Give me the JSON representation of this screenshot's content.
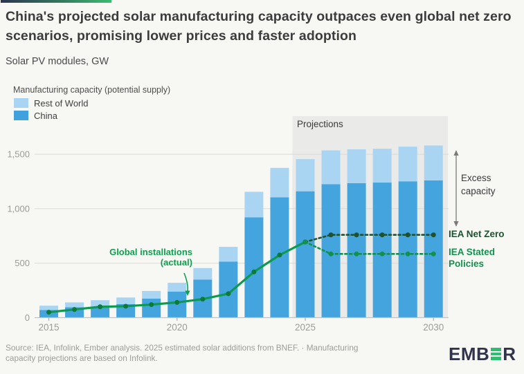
{
  "page": {
    "background": "#F7F7F4",
    "accent_gradient_left": "#2B3550",
    "accent_gradient_right": "#3DBB72"
  },
  "header": {
    "title": "China's projected solar manufacturing capacity outpaces even global net zero scenarios, promising lower prices and faster adoption",
    "subtitle": "Solar PV modules, GW"
  },
  "legend": {
    "title": "Manufacturing capacity (potential supply)",
    "items": [
      {
        "label": "Rest of World",
        "color": "#A9D5F3"
      },
      {
        "label": "China",
        "color": "#3FA2DD"
      }
    ]
  },
  "annotations": {
    "projections_label": "Projections",
    "global_installations_line1": "Global installations",
    "global_installations_line2": "(actual)",
    "excess_line1": "Excess",
    "excess_line2": "capacity",
    "iea_net_zero_label": "IEA Net Zero",
    "iea_stated_line1": "IEA Stated",
    "iea_stated_line2": "Policies"
  },
  "footer": {
    "line1": "Source: IEA, Infolink, Ember analysis. 2025 estimated solar additions from BNEF. · Manufacturing",
    "line2": "capacity projections are based on Infolink.",
    "logo_prefix": "EMB",
    "logo_suffix": "R"
  },
  "chart_data": {
    "type": "bar",
    "title": "China's projected solar manufacturing capacity outpaces even global net zero scenarios, promising lower prices and faster adoption",
    "subtitle": "Solar PV modules, GW",
    "ylabel": "GW",
    "stacked": true,
    "grid": true,
    "legend_position": "top-left",
    "categories": [
      2015,
      2016,
      2017,
      2018,
      2019,
      2020,
      2021,
      2022,
      2023,
      2024,
      2025,
      2026,
      2027,
      2028,
      2029,
      2030
    ],
    "series": [
      {
        "name": "China",
        "color": "#43A4DE",
        "values": [
          70,
          95,
          100,
          125,
          175,
          240,
          350,
          515,
          920,
          1105,
          1160,
          1225,
          1235,
          1240,
          1250,
          1260
        ]
      },
      {
        "name": "Rest of World",
        "color": "#A9D5F3",
        "values": [
          40,
          45,
          60,
          60,
          70,
          80,
          105,
          135,
          235,
          270,
          295,
          310,
          310,
          310,
          320,
          320
        ]
      }
    ],
    "lines": [
      {
        "name": "Global installations (actual)",
        "style": "solid",
        "color": "#0D9A4E",
        "dot_color": "#0B7A3C",
        "x": [
          2015,
          2016,
          2017,
          2018,
          2019,
          2020,
          2021,
          2022,
          2023,
          2024,
          2025
        ],
        "values": [
          50,
          75,
          100,
          105,
          120,
          140,
          170,
          220,
          420,
          575,
          695
        ]
      },
      {
        "name": "IEA Net Zero",
        "style": "dashed",
        "color": "#1E5130",
        "dot_color": "#1E5130",
        "x": [
          2025,
          2026,
          2027,
          2028,
          2029,
          2030
        ],
        "values": [
          695,
          760,
          760,
          760,
          760,
          760
        ]
      },
      {
        "name": "IEA Stated Policies",
        "style": "dashed",
        "color": "#12914E",
        "dot_color": "#12914E",
        "x": [
          2025,
          2026,
          2027,
          2028,
          2029,
          2030
        ],
        "values": [
          695,
          585,
          585,
          585,
          585,
          585
        ]
      }
    ],
    "ylim": [
      0,
      1600
    ],
    "yticks": [
      {
        "value": 0,
        "label": "0"
      },
      {
        "value": 500,
        "label": "500"
      },
      {
        "value": 1000,
        "label": "1,000"
      },
      {
        "value": 1500,
        "label": "1,500"
      }
    ],
    "xticks": [
      2015,
      2020,
      2025,
      2030
    ],
    "projection": {
      "label": "Projections",
      "start_after": 2024,
      "box_color": "#EAEAE8"
    }
  }
}
